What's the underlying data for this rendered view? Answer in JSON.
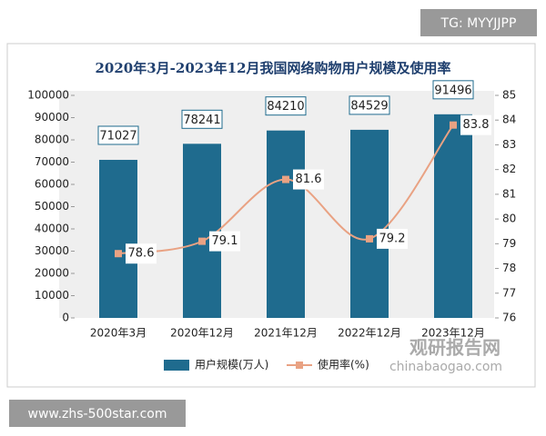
{
  "chart_data": {
    "type": "bar",
    "title": "2020年3月-2023年12月我国网络购物用户规模及使用率",
    "categories": [
      "2020年3月",
      "2020年12月",
      "2021年12月",
      "2022年12月",
      "2023年12月"
    ],
    "series": [
      {
        "name": "用户规模(万人)",
        "type": "bar",
        "color": "#1f6b8e",
        "values": [
          71027,
          78241,
          84210,
          84529,
          91496
        ]
      },
      {
        "name": "使用率(%)",
        "type": "line",
        "axis": "y2",
        "color": "#e9a283",
        "values": [
          78.6,
          79.1,
          81.6,
          79.2,
          83.8
        ]
      }
    ],
    "ylim": [
      0,
      100000
    ],
    "yticks": [
      0,
      10000,
      20000,
      30000,
      40000,
      50000,
      60000,
      70000,
      80000,
      90000,
      100000
    ],
    "y2lim": [
      76,
      85
    ],
    "y2ticks": [
      76,
      77,
      78,
      79,
      80,
      81,
      82,
      83,
      84,
      85
    ],
    "legend": "bottom"
  },
  "watermarks": [
    "TG: MYYJJPP",
    "www.zhs-500star.com",
    "观研报告网",
    "chinabaogao.com"
  ]
}
